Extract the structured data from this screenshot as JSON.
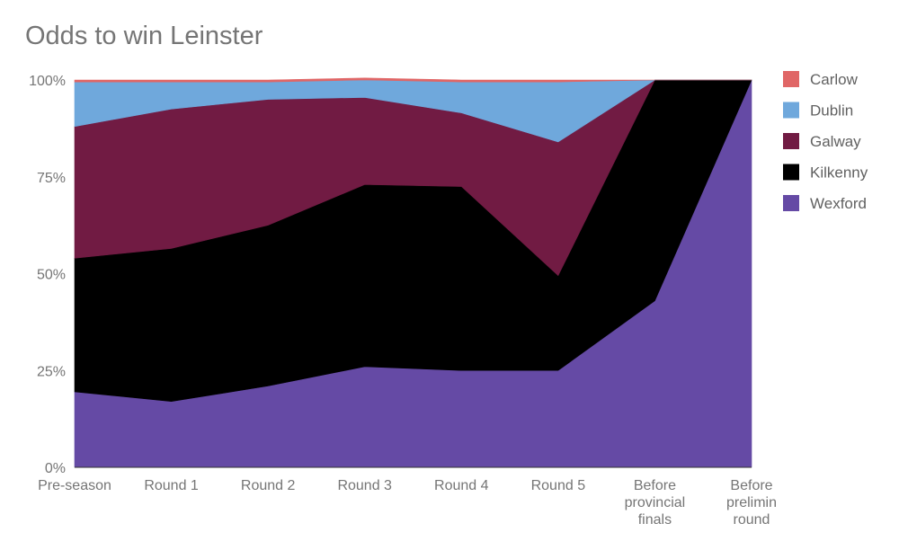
{
  "chart_data": {
    "type": "area",
    "stacked": true,
    "normalized": true,
    "title": "Odds to win Leinster",
    "xlabel": "",
    "ylabel": "",
    "ylim": [
      0,
      100
    ],
    "y_ticks": [
      "0%",
      "25%",
      "50%",
      "75%",
      "100%"
    ],
    "categories": [
      [
        "Pre-season"
      ],
      [
        "Round 1"
      ],
      [
        "Round 2"
      ],
      [
        "Round 3"
      ],
      [
        "Round 4"
      ],
      [
        "Round 5"
      ],
      [
        "Before",
        "provincial",
        "finals"
      ],
      [
        "Before",
        "prelimin",
        "round"
      ]
    ],
    "legend_position": "right",
    "grid": false,
    "series": [
      {
        "name": "Wexford",
        "color": "#654aa5",
        "values": [
          19.5,
          17,
          21,
          26,
          25,
          25,
          43,
          100
        ]
      },
      {
        "name": "Kilkenny",
        "color": "#000000",
        "values": [
          34.5,
          39.5,
          41.5,
          47,
          47.5,
          24.5,
          57,
          0
        ]
      },
      {
        "name": "Galway",
        "color": "#711b43",
        "values": [
          34,
          36,
          32.5,
          22.5,
          19,
          34.5,
          0,
          0
        ]
      },
      {
        "name": "Dublin",
        "color": "#6fa8dc",
        "values": [
          11.5,
          7,
          4.5,
          4.5,
          8,
          15.5,
          0,
          0
        ]
      },
      {
        "name": "Carlow",
        "color": "#e06666",
        "values": [
          0.5,
          0.5,
          0.5,
          0.5,
          0.5,
          0.5,
          0,
          0
        ]
      }
    ],
    "legend_order": [
      "Carlow",
      "Dublin",
      "Galway",
      "Kilkenny",
      "Wexford"
    ]
  }
}
